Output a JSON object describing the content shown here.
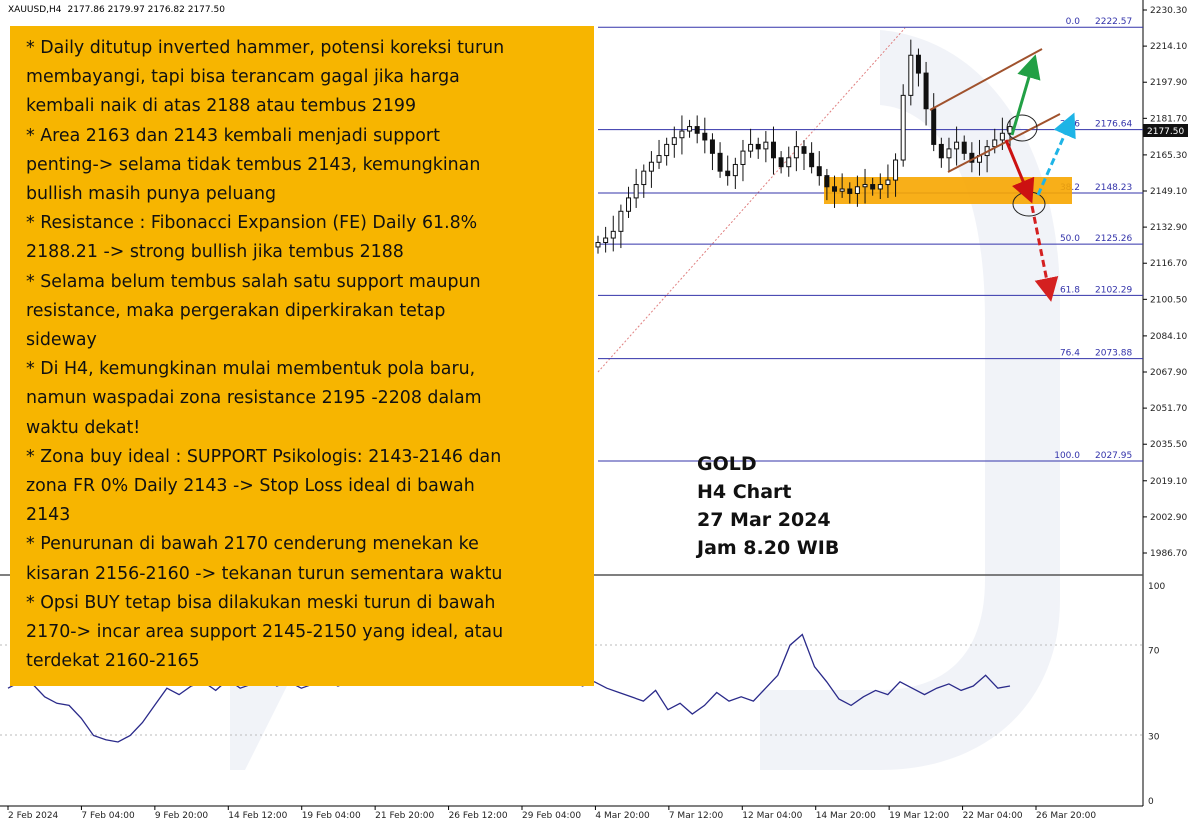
{
  "header": {
    "symbol_label": "XAUUSD,H4",
    "ohlc": "2177.86 2179.97 2176.82 2177.50"
  },
  "note_lines": [
    "* Daily ditutup inverted hammer, potensi koreksi turun",
    "membayangi, tapi bisa terancam gagal jika harga",
    "kembali naik di atas 2188 atau tembus 2199",
    "* Area 2163 dan 2143 kembali menjadi support",
    "penting-> selama tidak tembus 2143, kemungkinan",
    "bullish masih punya peluang",
    "* Resistance : Fibonacci Expansion (FE) Daily 61.8%",
    "2188.21 -> strong bullish jika tembus 2188",
    "* Selama belum tembus salah satu support maupun",
    "resistance, maka pergerakan diperkirakan tetap",
    "sideway",
    "* Di H4, kemungkinan mulai membentuk pola baru,",
    "namun waspadai zona resistance 2195 -2208 dalam",
    "waktu dekat!",
    "* Zona buy ideal : SUPPORT Psikologis: 2143-2146 dan",
    "zona FR 0% Daily 2143 -> Stop Loss ideal di bawah",
    "2143",
    "* Penurunan di bawah 2170 cenderung menekan ke",
    "kisaran 2156-2160 -> tekanan turun sementara waktu",
    "* Opsi BUY tetap bisa dilakukan meski turun di bawah",
    "2170-> incar area support 2145-2150 yang ideal, atau",
    "terdekat 2160-2165"
  ],
  "caption": {
    "line1": "GOLD",
    "line2": "H4 Chart",
    "line3": "27 Mar 2024",
    "line4": "Jam 8.20 WIB"
  },
  "colors": {
    "candle": "#111111",
    "fib_line": "#3333aa",
    "support_zone": "#f7a600",
    "channel": "#a0522d",
    "arrow_up_green": "#22a045",
    "arrow_up_cyan": "#1eb4e6",
    "arrow_down_red": "#d42020",
    "arrow_red": "#cc1111",
    "rsi_line": "#2a2a8a",
    "note_bg": "#f7b500"
  },
  "chart_data": {
    "type": "candlestick",
    "price_axis": {
      "ylim": [
        1986.7,
        2230.3
      ],
      "ticks": [
        "2230.30",
        "2214.10",
        "2197.90",
        "2181.70",
        "2165.30",
        "2149.10",
        "2132.90",
        "2116.70",
        "2100.50",
        "2084.10",
        "2067.90",
        "2051.70",
        "2035.50",
        "2019.10",
        "2002.90",
        "1986.70"
      ],
      "current_price": "2177.50"
    },
    "fibonacci": [
      {
        "level": "0.0",
        "price": "2222.57"
      },
      {
        "level": "23.6",
        "price": "2176.64"
      },
      {
        "level": "38.2",
        "price": "2148.23"
      },
      {
        "level": "50.0",
        "price": "2125.26"
      },
      {
        "level": "61.8",
        "price": "2102.29"
      },
      {
        "level": "76.4",
        "price": "2073.88"
      },
      {
        "level": "100.0",
        "price": "2027.95"
      }
    ],
    "support_zone": [
      2143,
      2151
    ],
    "time_labels": [
      "2 Feb 2024",
      "7 Feb 04:00",
      "9 Feb 20:00",
      "14 Feb 12:00",
      "19 Feb 04:00",
      "21 Feb 20:00",
      "26 Feb 12:00",
      "29 Feb 04:00",
      "4 Mar 20:00",
      "7 Mar 12:00",
      "12 Mar 04:00",
      "14 Mar 20:00",
      "19 Mar 12:00",
      "22 Mar 04:00",
      "26 Mar 20:00"
    ],
    "candles_visible_close": [
      2126,
      2128,
      2131,
      2140,
      2146,
      2152,
      2158,
      2162,
      2165,
      2170,
      2173,
      2176,
      2178,
      2175,
      2172,
      2166,
      2158,
      2156,
      2161,
      2167,
      2170,
      2168,
      2171,
      2164,
      2160,
      2164,
      2169,
      2166,
      2160,
      2156,
      2151,
      2149,
      2150,
      2148,
      2151,
      2152,
      2150,
      2152,
      2154,
      2163,
      2192,
      2210,
      2202,
      2186,
      2170,
      2164,
      2168,
      2171,
      2166,
      2162,
      2165,
      2169,
      2172,
      2175,
      2178
    ],
    "rsi": {
      "ylim": [
        0,
        100
      ],
      "ticks": [
        "100",
        "70",
        "30",
        "0"
      ],
      "values": [
        52,
        55,
        54,
        48,
        45,
        44,
        38,
        30,
        28,
        27,
        30,
        36,
        44,
        52,
        49,
        53,
        55,
        51,
        56,
        52,
        54,
        57,
        53,
        55,
        52,
        54,
        56,
        53,
        55,
        57,
        54,
        60,
        63,
        66,
        70,
        72,
        75,
        73,
        77,
        71,
        68,
        63,
        66,
        62,
        58,
        56,
        59,
        53,
        55,
        52,
        50,
        48,
        46,
        51,
        42,
        45,
        40,
        44,
        50,
        46,
        48,
        46,
        52,
        58,
        72,
        77,
        62,
        55,
        47,
        44,
        48,
        51,
        49,
        55,
        52,
        49,
        52,
        54,
        51,
        53,
        58,
        52,
        53
      ]
    }
  }
}
